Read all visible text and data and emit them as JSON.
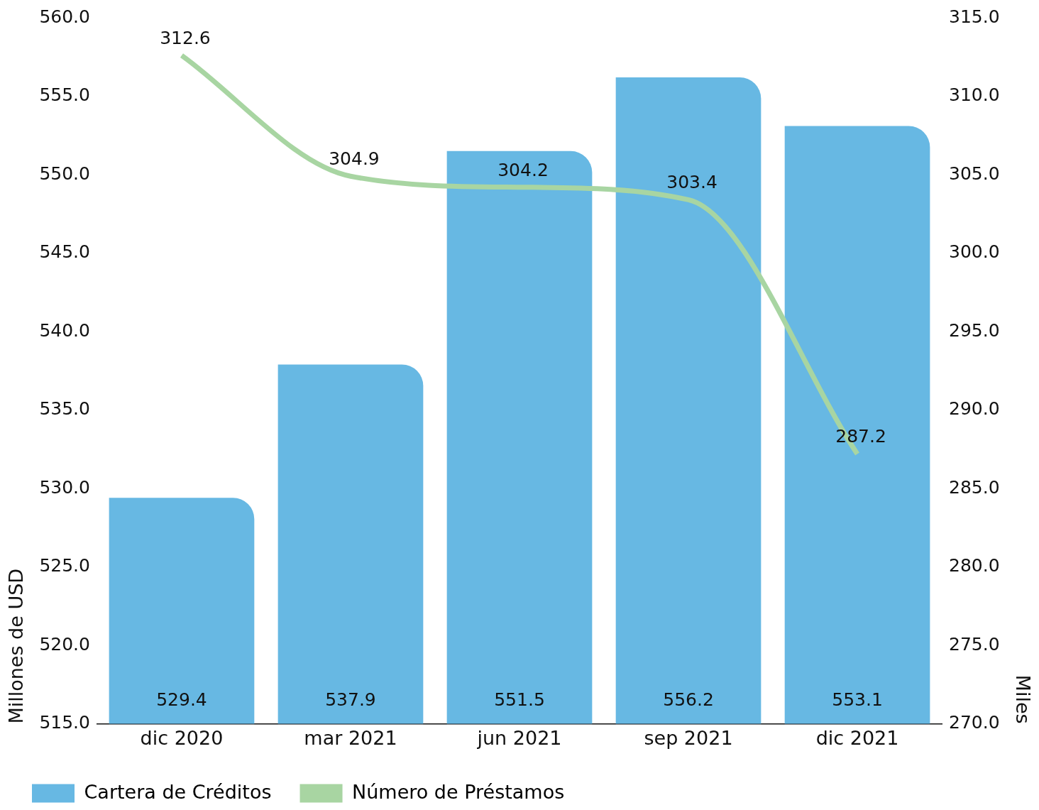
{
  "chart_data": {
    "type": "bar",
    "categories": [
      "dic 2020",
      "mar 2021",
      "jun 2021",
      "sep 2021",
      "dic 2021"
    ],
    "series": [
      {
        "name": "Cartera de Créditos",
        "color": "#67b8e3",
        "values": [
          529.4,
          537.9,
          551.5,
          556.2,
          553.1
        ]
      },
      {
        "name": "Número de Préstamos",
        "type": "line",
        "axis": "y2",
        "color": "#a8d5a2",
        "values": [
          312.6,
          304.9,
          304.2,
          303.4,
          287.2
        ]
      }
    ],
    "ylabel": "Millones de USD",
    "y2label": "Miles",
    "ylim": [
      515,
      560
    ],
    "yticks": [
      {
        "value": 515,
        "label": "515.0"
      },
      {
        "value": 520,
        "label": "520.0"
      },
      {
        "value": 525,
        "label": "525.0"
      },
      {
        "value": 530,
        "label": "530.0"
      },
      {
        "value": 535,
        "label": "535.0"
      },
      {
        "value": 540,
        "label": "540.0"
      },
      {
        "value": 545,
        "label": "545.0"
      },
      {
        "value": 550,
        "label": "550.0"
      },
      {
        "value": 555,
        "label": "555.0"
      },
      {
        "value": 560,
        "label": "560.0"
      }
    ],
    "y2lim": [
      270,
      315
    ],
    "y2ticks": [
      {
        "value": 270,
        "label": "270.0"
      },
      {
        "value": 275,
        "label": "275.0"
      },
      {
        "value": 280,
        "label": "280.0"
      },
      {
        "value": 285,
        "label": "285.0"
      },
      {
        "value": 290,
        "label": "290.0"
      },
      {
        "value": 295,
        "label": "295.0"
      },
      {
        "value": 300,
        "label": "300.0"
      },
      {
        "value": 305,
        "label": "305.0"
      },
      {
        "value": 310,
        "label": "310.0"
      },
      {
        "value": 315,
        "label": "315.0"
      }
    ],
    "data_labels": true,
    "grid": false,
    "legend": "bottom left",
    "marker": "none",
    "line_style": "solid"
  }
}
